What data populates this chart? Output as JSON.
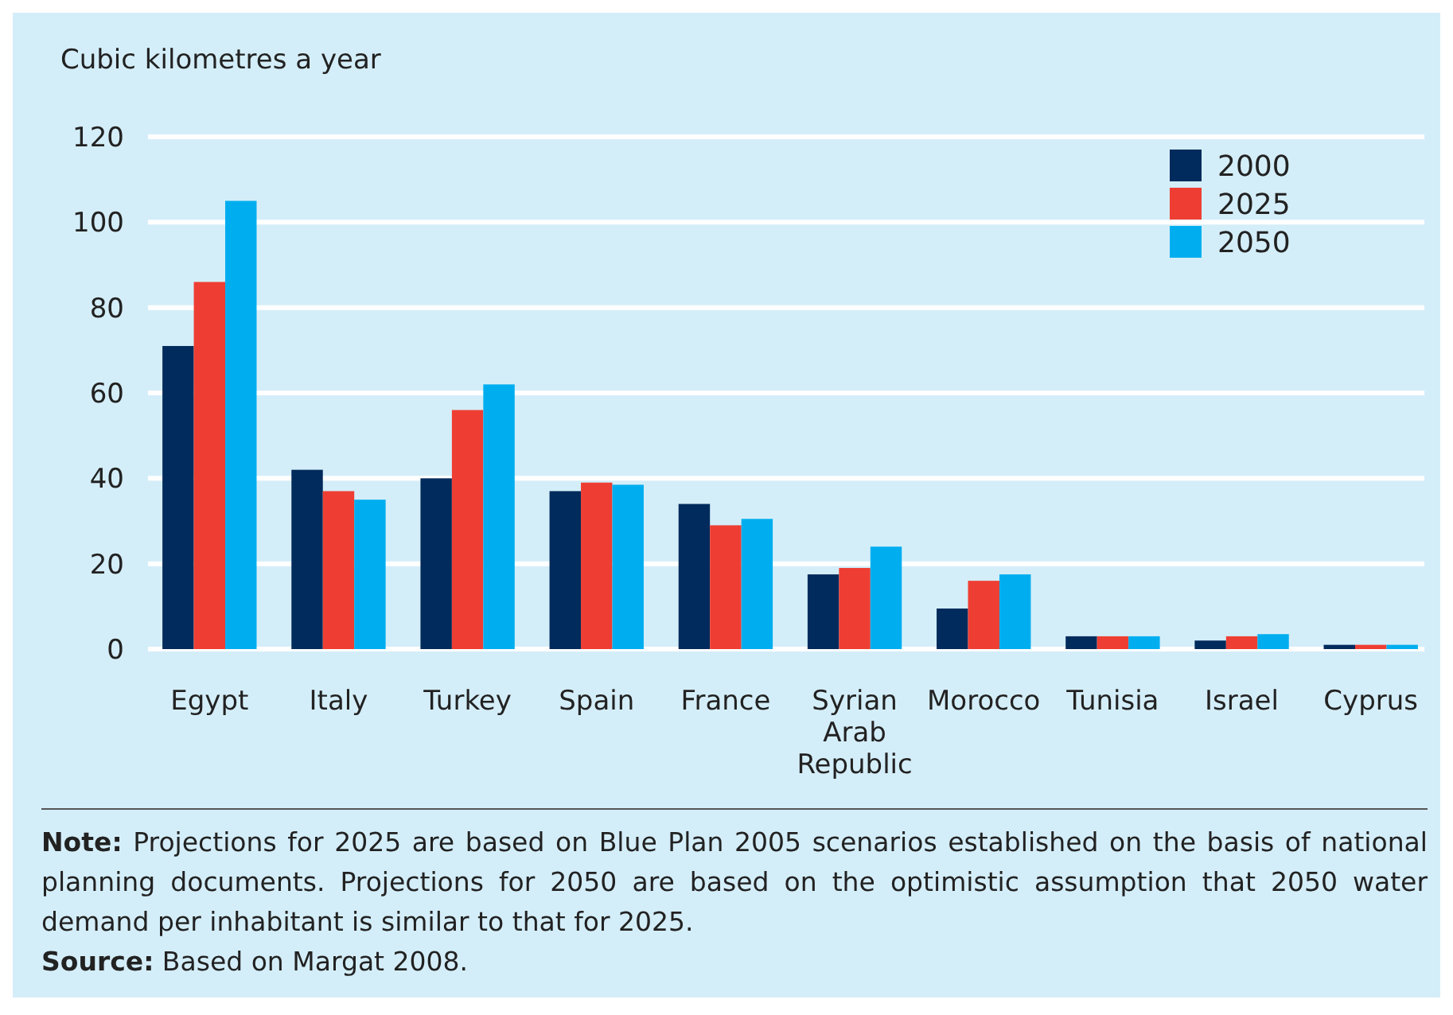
{
  "chart_data": {
    "type": "bar",
    "ylabel": "Cubic kilometres a year",
    "categories": [
      "Egypt",
      "Italy",
      "Turkey",
      "Spain",
      "France",
      "Syrian Arab Republic",
      "Morocco",
      "Tunisia",
      "Israel",
      "Cyprus"
    ],
    "series": [
      {
        "name": "2000",
        "color": "#002b5c",
        "values": [
          71,
          42,
          40,
          37,
          34,
          17.5,
          9.5,
          3,
          2,
          1
        ]
      },
      {
        "name": "2025",
        "color": "#ee3e33",
        "values": [
          86,
          37,
          56,
          39,
          29,
          19,
          16,
          3,
          3,
          1
        ]
      },
      {
        "name": "2050",
        "color": "#00aeef",
        "values": [
          105,
          35,
          62,
          38.5,
          30.5,
          24,
          17.5,
          3,
          3.5,
          1
        ]
      }
    ],
    "ylim": [
      0,
      120
    ],
    "yticks": [
      0,
      20,
      40,
      60,
      80,
      100,
      120
    ],
    "grid": "y",
    "legend": "top right",
    "annotations": [
      "Note: Projections for 2025 are based on Blue Plan 2005 scenarios established on the basis of national planning documents. Projections for 2050 are based on the optimistic assumption that 2050 water demand per inhabitant is similar to that for 2025.",
      "Source: Based on Margat 2008."
    ]
  }
}
